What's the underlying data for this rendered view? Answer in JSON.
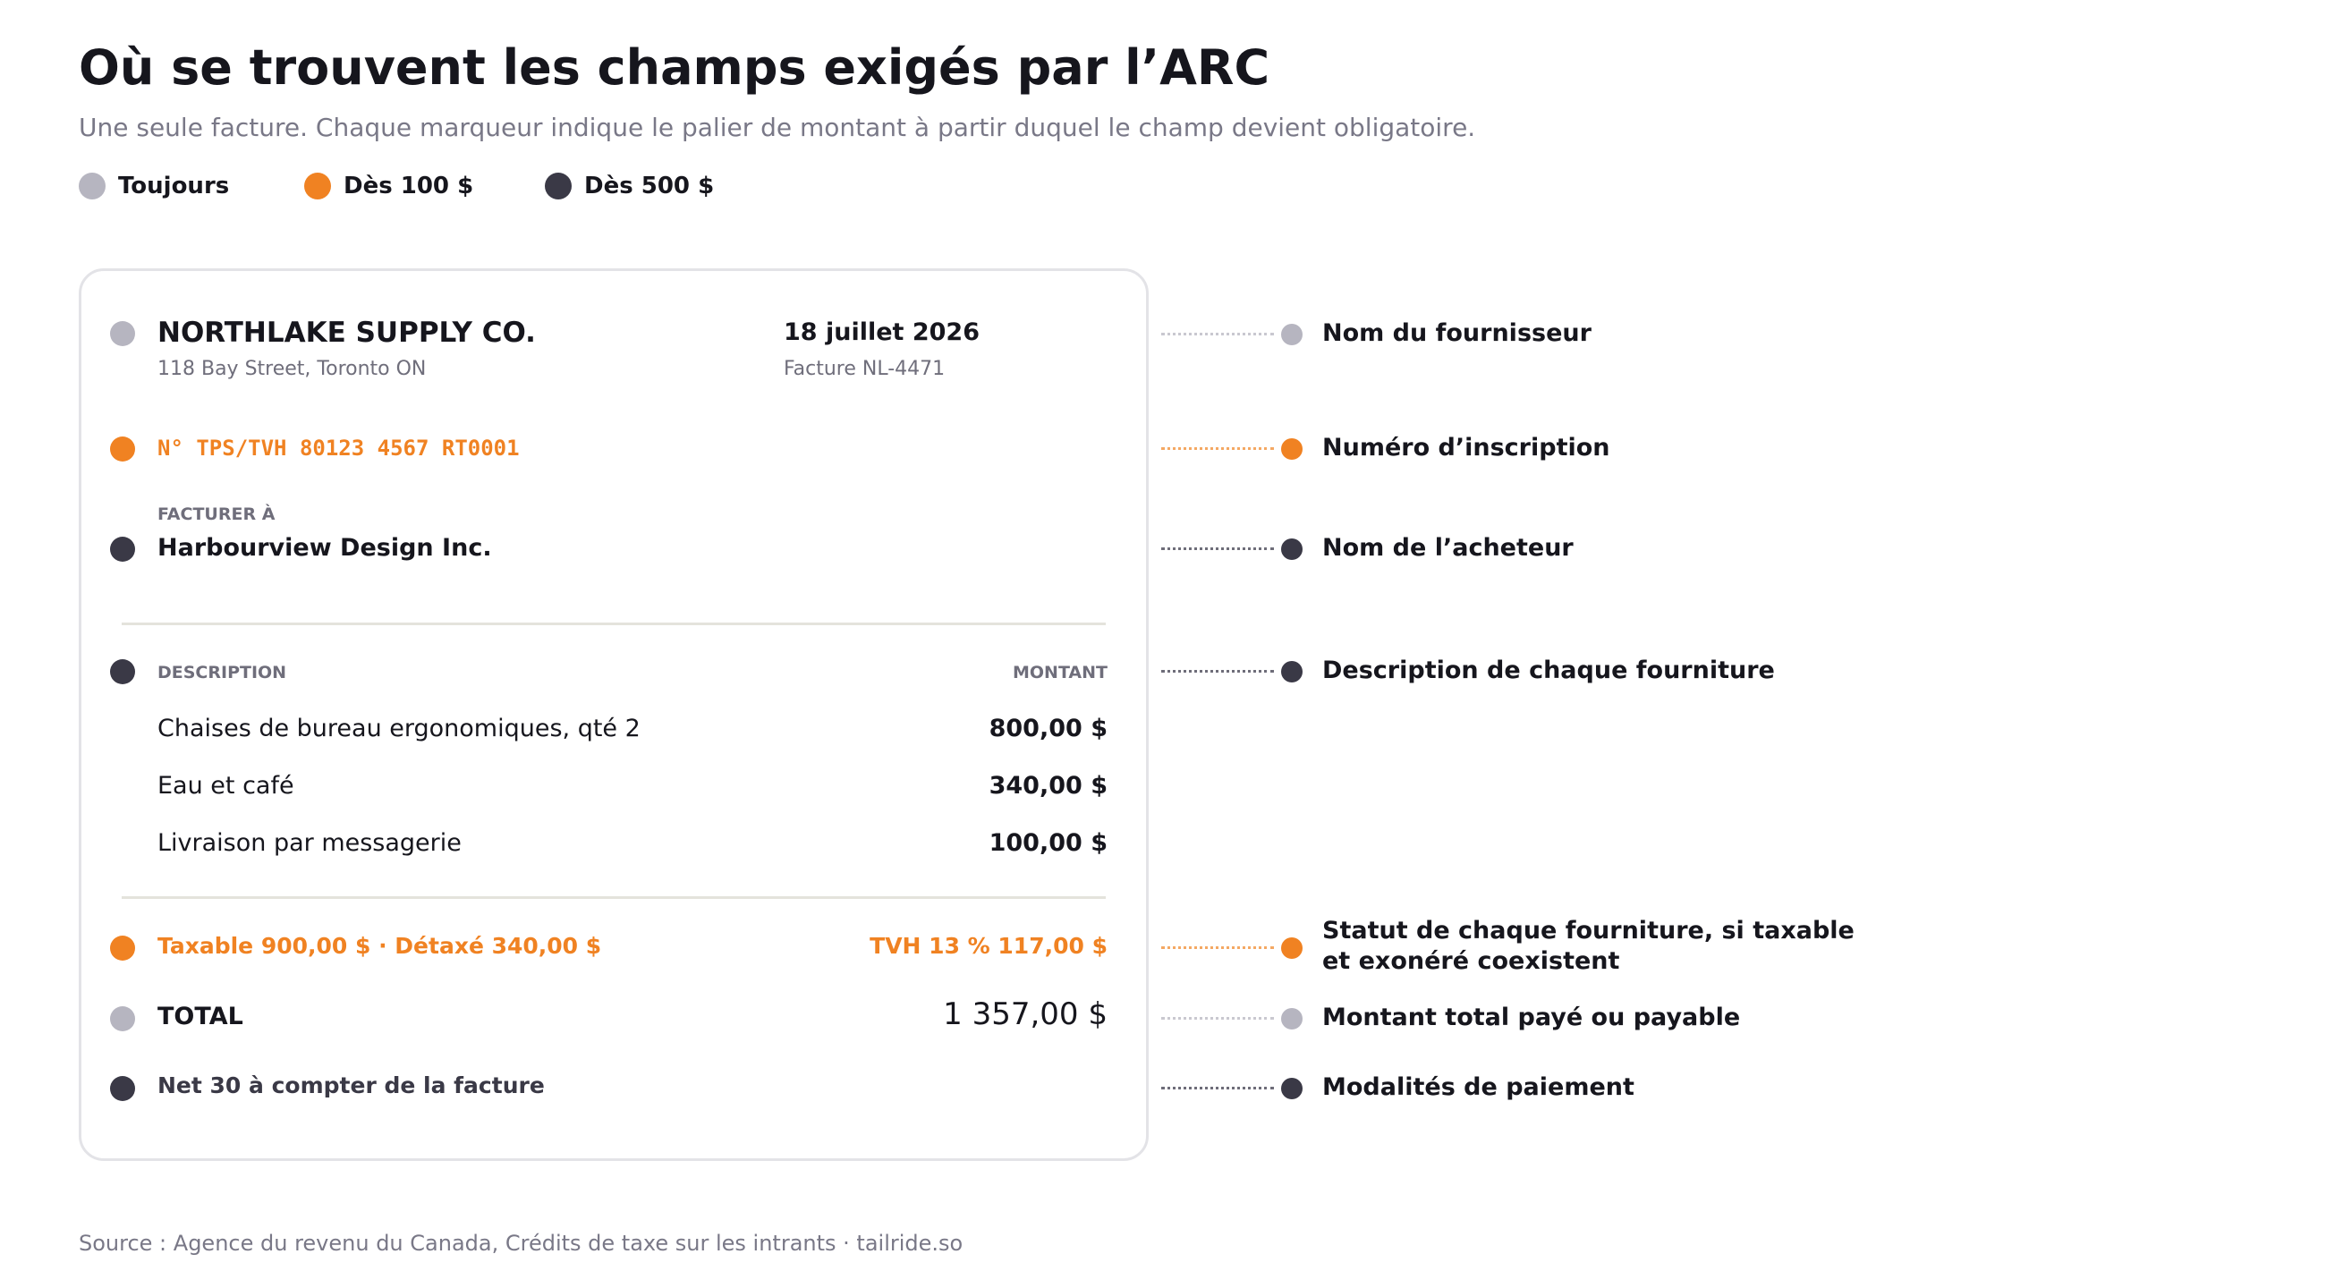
{
  "header": {
    "title": "Où se trouvent les champs exigés par l’ARC",
    "subtitle": "Une seule facture. Chaque marqueur indique le palier de montant à partir duquel le champ devient obligatoire."
  },
  "legend": [
    {
      "label": "Toujours",
      "tier": "always",
      "color": "#b6b5c0"
    },
    {
      "label": "Dès 100 $",
      "tier": "from_100",
      "color": "#f08222"
    },
    {
      "label": "Dès 500 $",
      "tier": "from_500",
      "color": "#3a3946"
    }
  ],
  "invoice": {
    "supplier_name": "NORTHLAKE SUPPLY CO.",
    "supplier_address": "118 Bay Street, Toronto ON",
    "date": "18 juillet 2026",
    "invoice_number": "Facture NL-4471",
    "registration_number": "N° TPS/TVH 80123 4567 RT0001",
    "bill_to_label": "FACTURER À",
    "buyer_name": "Harbourview Design Inc.",
    "col_description": "DESCRIPTION",
    "col_amount": "MONTANT",
    "items": [
      {
        "description": "Chaises de bureau ergonomiques, qté 2",
        "amount": "800,00 $"
      },
      {
        "description": "Eau et café",
        "amount": "340,00 $"
      },
      {
        "description": "Livraison par messagerie",
        "amount": "100,00 $"
      }
    ],
    "tax_status": "Taxable 900,00 $ · Détaxé 340,00 $",
    "tax_amount": "TVH 13 % 117,00 $",
    "total_label": "TOTAL",
    "total_amount": "1 357,00 $",
    "payment_terms": "Net 30 à compter de la facture"
  },
  "annotations": {
    "supplier_name": "Nom du fournisseur",
    "registration_number": "Numéro d’inscription",
    "buyer_name": "Nom de l’acheteur",
    "description": "Description de chaque fourniture",
    "tax_status_line1": "Statut de chaque fourniture, si taxable",
    "tax_status_line2": "et exonéré coexistent",
    "total": "Montant total payé ou payable",
    "payment_terms": "Modalités de paiement"
  },
  "source": "Source : Agence du revenu du Canada, Crédits de taxe sur les intrants · tailride.so"
}
